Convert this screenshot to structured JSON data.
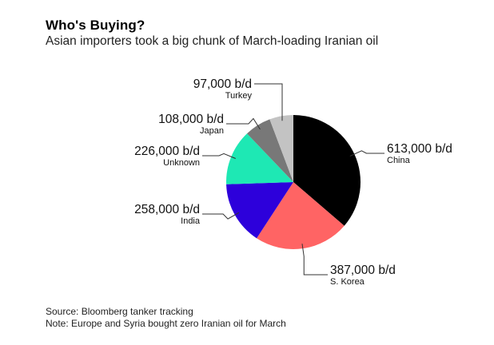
{
  "title": "Who's Buying?",
  "subtitle": "Asian importers took a big chunk of March-loading Iranian oil",
  "chart_data": {
    "type": "pie",
    "unit": "b/d",
    "slices": [
      {
        "label": "China",
        "value": 613000,
        "display": "613,000 b/d",
        "color": "#000000"
      },
      {
        "label": "S. Korea",
        "value": 387000,
        "display": "387,000 b/d",
        "color": "#ff6464"
      },
      {
        "label": "India",
        "value": 258000,
        "display": "258,000 b/d",
        "color": "#2d00db"
      },
      {
        "label": "Unknown",
        "value": 226000,
        "display": "226,000 b/d",
        "color": "#1ee8b4"
      },
      {
        "label": "Japan",
        "value": 108000,
        "display": "108,000 b/d",
        "color": "#787878"
      },
      {
        "label": "Turkey",
        "value": 97000,
        "display": "97,000 b/d",
        "color": "#c3c3c3"
      }
    ]
  },
  "footer": {
    "source": "Source: Bloomberg tanker tracking",
    "note": "Note: Europe and Syria bought zero Iranian oil for March"
  }
}
